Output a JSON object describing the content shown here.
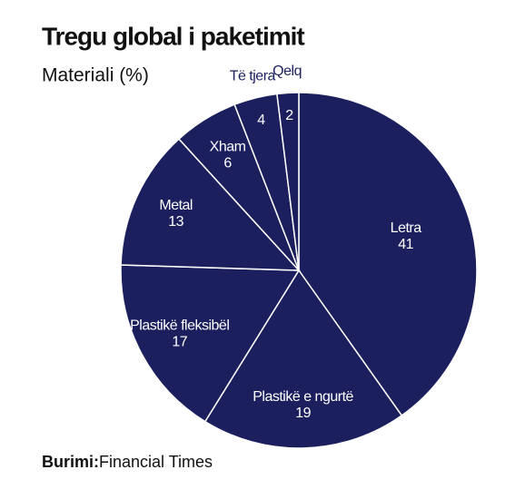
{
  "chart_data": {
    "type": "pie",
    "title": "Tregu global i paketimit",
    "subtitle": "Materiali (%)",
    "categories": [
      "Letra",
      "Plastikë e ngurtë",
      "Plastikë fleksibël",
      "Metal",
      "Xham",
      "Të tjera",
      "Qelq"
    ],
    "values": [
      41,
      19,
      17,
      13,
      6,
      4,
      2
    ],
    "color": "#1c1f5e",
    "source_label": "Burimi:",
    "source": "Financial Times"
  }
}
